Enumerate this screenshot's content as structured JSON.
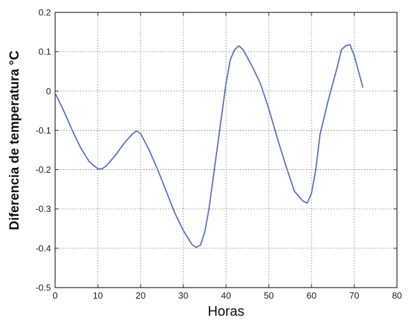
{
  "chart_data": {
    "type": "line",
    "title": "",
    "xlabel": "Horas",
    "ylabel": "Diferencia de temperatura °C",
    "xlim": [
      0,
      80
    ],
    "ylim": [
      -0.5,
      0.2
    ],
    "xticks": [
      0,
      10,
      20,
      30,
      40,
      50,
      60,
      70,
      80
    ],
    "xtick_labels": [
      "0",
      "10",
      "20",
      "30",
      "40",
      "50",
      "60",
      "70",
      "80"
    ],
    "yticks": [
      0.2,
      0.1,
      0,
      -0.1,
      -0.2,
      -0.3,
      -0.4,
      -0.5
    ],
    "ytick_labels": [
      "0.2",
      "0.1",
      "0",
      "-0.1",
      "-0.2",
      "-0.3",
      "-0.4",
      "-0.5"
    ],
    "grid": true,
    "series": [
      {
        "color": "#5a6fb0",
        "x": [
          0,
          2,
          4,
          6,
          8,
          10,
          11,
          12,
          14,
          16,
          18,
          19,
          20,
          22,
          24,
          26,
          28,
          30,
          32,
          33,
          34,
          35,
          36,
          38,
          40,
          41,
          42,
          43,
          44,
          46,
          48,
          50,
          52,
          54,
          56,
          58,
          59,
          60,
          61,
          62,
          64,
          66,
          67,
          68,
          69,
          70,
          71,
          72
        ],
        "y": [
          -0.005,
          -0.05,
          -0.1,
          -0.145,
          -0.18,
          -0.198,
          -0.198,
          -0.19,
          -0.165,
          -0.135,
          -0.11,
          -0.102,
          -0.108,
          -0.15,
          -0.2,
          -0.255,
          -0.31,
          -0.355,
          -0.39,
          -0.398,
          -0.392,
          -0.36,
          -0.3,
          -0.14,
          0.02,
          0.08,
          0.105,
          0.115,
          0.105,
          0.065,
          0.02,
          -0.045,
          -0.12,
          -0.19,
          -0.255,
          -0.28,
          -0.285,
          -0.26,
          -0.2,
          -0.11,
          -0.02,
          0.06,
          0.105,
          0.115,
          0.118,
          0.09,
          0.05,
          0.01
        ]
      }
    ]
  }
}
